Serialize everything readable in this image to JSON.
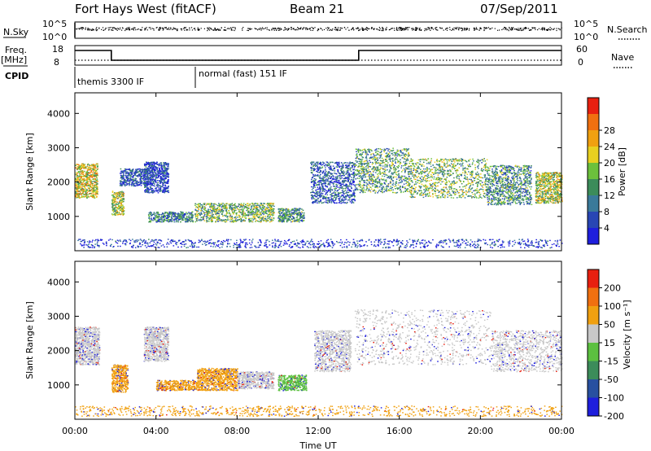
{
  "header": {
    "title": "Fort Hays West (fitACF)",
    "beam": "Beam 21",
    "date": "07/Sep/2011"
  },
  "strip": {
    "nsky_label": "N.Sky",
    "nsky_top": "10^5",
    "nsky_bottom": "10^0",
    "nsearch_label": "N.Search",
    "freq_label": "Freq.",
    "freq_unit": "[MHz]",
    "freq_top": "18",
    "freq_bottom": "8",
    "nave_label": "Nave",
    "nave_top": "60",
    "nave_bottom": "0",
    "cpid_label": "CPID",
    "cpid_modes": [
      {
        "label": "themis 3300 IF",
        "start_hour": 0
      },
      {
        "label": "normal (fast) 151 IF",
        "start_hour": 6
      }
    ],
    "freq_series": [
      [
        0,
        15
      ],
      [
        1.8,
        15
      ],
      [
        1.8,
        9
      ],
      [
        14,
        9
      ],
      [
        14,
        15
      ],
      [
        24,
        15
      ]
    ]
  },
  "chart_data": [
    {
      "type": "heatmap",
      "name": "power",
      "xlabel": "Time UT",
      "ylabel": "Slant Range [km]",
      "xlim": [
        0,
        24
      ],
      "ylim": [
        0,
        4600
      ],
      "x_ticks": [
        "00:00",
        "04:00",
        "08:00",
        "12:00",
        "16:00",
        "20:00",
        "00:00"
      ],
      "y_ticks": [
        1000,
        2000,
        3000,
        4000
      ],
      "colorbar": {
        "label": "Power [dB]",
        "ticks": [
          "4",
          "8",
          "12",
          "16",
          "20",
          "24",
          "28"
        ],
        "colors": [
          "#1e1edc",
          "#2846b4",
          "#3a7a9a",
          "#3c8c5a",
          "#6cc03c",
          "#e8d020",
          "#f0a010",
          "#f07010",
          "#e82010"
        ]
      },
      "regions": [
        {
          "t0": 0.0,
          "t1": 1.1,
          "r0": 1550,
          "r1": 2550,
          "level": 0.55
        },
        {
          "t0": 1.8,
          "t1": 2.4,
          "r0": 1050,
          "r1": 1750,
          "level": 0.5
        },
        {
          "t0": 2.2,
          "t1": 3.6,
          "r0": 1900,
          "r1": 2400,
          "level": 0.15
        },
        {
          "t0": 3.4,
          "t1": 4.6,
          "r0": 1700,
          "r1": 2600,
          "level": 0.1
        },
        {
          "t0": 3.6,
          "t1": 5.8,
          "r0": 850,
          "r1": 1150,
          "level": 0.25
        },
        {
          "t0": 5.9,
          "t1": 9.8,
          "r0": 850,
          "r1": 1400,
          "level": 0.4
        },
        {
          "t0": 10.0,
          "t1": 11.3,
          "r0": 850,
          "r1": 1250,
          "level": 0.3
        },
        {
          "t0": 11.6,
          "t1": 13.8,
          "r0": 1400,
          "r1": 2600,
          "level": 0.15
        },
        {
          "t0": 13.8,
          "t1": 16.5,
          "r0": 1700,
          "r1": 3000,
          "level": 0.35
        },
        {
          "t0": 16.5,
          "t1": 20.3,
          "r0": 1550,
          "r1": 2700,
          "level": 0.4
        },
        {
          "t0": 20.3,
          "t1": 22.5,
          "r0": 1350,
          "r1": 2500,
          "level": 0.3
        },
        {
          "t0": 22.7,
          "t1": 24.0,
          "r0": 1400,
          "r1": 2300,
          "level": 0.5
        },
        {
          "t0": 0.0,
          "t1": 24.0,
          "r0": 100,
          "r1": 350,
          "level": 0.05
        }
      ]
    },
    {
      "type": "heatmap",
      "name": "velocity",
      "xlabel": "Time UT",
      "ylabel": "Slant Range [km]",
      "xlim": [
        0,
        24
      ],
      "ylim": [
        0,
        4600
      ],
      "x_ticks": [
        "00:00",
        "04:00",
        "08:00",
        "12:00",
        "16:00",
        "20:00",
        "00:00"
      ],
      "y_ticks": [
        1000,
        2000,
        3000,
        4000
      ],
      "colorbar": {
        "label": "Velocity [m s⁻¹]",
        "ticks": [
          "200",
          "100",
          "50",
          "15",
          "-15",
          "-50",
          "-100",
          "-200"
        ],
        "colors": [
          "#1e1edc",
          "#2850a0",
          "#3c8c5a",
          "#5cc040",
          "#c8c8c8",
          "#f0a010",
          "#f07010",
          "#e82010"
        ]
      },
      "regions": [
        {
          "t0": 0.0,
          "t1": 1.2,
          "r0": 1600,
          "r1": 2700,
          "level": "gray"
        },
        {
          "t0": 1.8,
          "t1": 2.6,
          "r0": 800,
          "r1": 1600,
          "level": "orange"
        },
        {
          "t0": 3.4,
          "t1": 4.6,
          "r0": 1700,
          "r1": 2700,
          "level": "gray"
        },
        {
          "t0": 4.0,
          "t1": 6.0,
          "r0": 850,
          "r1": 1150,
          "level": "orange"
        },
        {
          "t0": 6.0,
          "t1": 8.0,
          "r0": 850,
          "r1": 1500,
          "level": "orange"
        },
        {
          "t0": 8.0,
          "t1": 9.8,
          "r0": 900,
          "r1": 1400,
          "level": "gray"
        },
        {
          "t0": 10.0,
          "t1": 11.4,
          "r0": 850,
          "r1": 1300,
          "level": "green"
        },
        {
          "t0": 11.8,
          "t1": 13.6,
          "r0": 1400,
          "r1": 2600,
          "level": "gray"
        },
        {
          "t0": 13.8,
          "t1": 20.5,
          "r0": 1600,
          "r1": 3200,
          "level": "gray"
        },
        {
          "t0": 20.5,
          "t1": 24.0,
          "r0": 1400,
          "r1": 2600,
          "level": "gray"
        },
        {
          "t0": 0.0,
          "t1": 24.0,
          "r0": 100,
          "r1": 400,
          "level": "orange"
        }
      ]
    }
  ]
}
